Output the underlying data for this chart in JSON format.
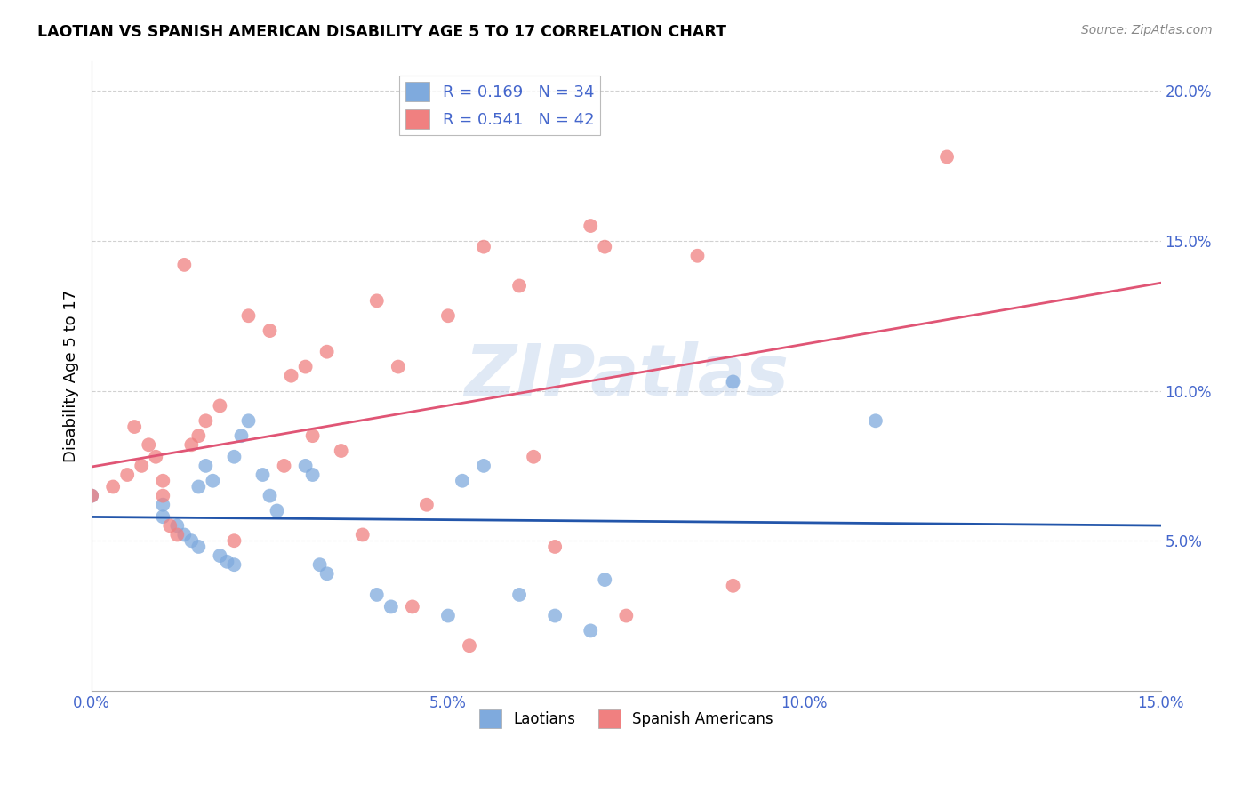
{
  "title": "LAOTIAN VS SPANISH AMERICAN DISABILITY AGE 5 TO 17 CORRELATION CHART",
  "source": "Source: ZipAtlas.com",
  "ylabel": "Disability Age 5 to 17",
  "xlim": [
    0.0,
    0.15
  ],
  "ylim": [
    0.0,
    0.21
  ],
  "xticks": [
    0.0,
    0.05,
    0.1,
    0.15
  ],
  "yticks": [
    0.05,
    0.1,
    0.15,
    0.2
  ],
  "xtick_labels": [
    "0.0%",
    "5.0%",
    "10.0%",
    "15.0%"
  ],
  "ytick_labels": [
    "5.0%",
    "10.0%",
    "15.0%",
    "20.0%"
  ],
  "laotian_color": "#7faadd",
  "spanish_color": "#f08080",
  "laotian_line_color": "#2255aa",
  "spanish_line_color": "#e05575",
  "laotian_R": 0.169,
  "laotian_N": 34,
  "spanish_R": 0.541,
  "spanish_N": 42,
  "watermark": "ZIPatlas",
  "laotian_x": [
    0.0,
    0.01,
    0.01,
    0.012,
    0.013,
    0.014,
    0.015,
    0.015,
    0.016,
    0.017,
    0.018,
    0.019,
    0.02,
    0.02,
    0.021,
    0.022,
    0.024,
    0.025,
    0.026,
    0.03,
    0.031,
    0.032,
    0.033,
    0.04,
    0.042,
    0.05,
    0.052,
    0.055,
    0.06,
    0.065,
    0.07,
    0.072,
    0.09,
    0.11
  ],
  "laotian_y": [
    0.065,
    0.062,
    0.058,
    0.055,
    0.052,
    0.05,
    0.048,
    0.068,
    0.075,
    0.07,
    0.045,
    0.043,
    0.042,
    0.078,
    0.085,
    0.09,
    0.072,
    0.065,
    0.06,
    0.075,
    0.072,
    0.042,
    0.039,
    0.032,
    0.028,
    0.025,
    0.07,
    0.075,
    0.032,
    0.025,
    0.02,
    0.037,
    0.103,
    0.09
  ],
  "spanish_x": [
    0.0,
    0.003,
    0.005,
    0.006,
    0.007,
    0.008,
    0.009,
    0.01,
    0.01,
    0.011,
    0.012,
    0.013,
    0.014,
    0.015,
    0.016,
    0.018,
    0.02,
    0.022,
    0.025,
    0.027,
    0.028,
    0.03,
    0.031,
    0.033,
    0.035,
    0.038,
    0.04,
    0.043,
    0.045,
    0.047,
    0.05,
    0.053,
    0.055,
    0.06,
    0.062,
    0.065,
    0.07,
    0.072,
    0.075,
    0.085,
    0.09,
    0.12
  ],
  "spanish_y": [
    0.065,
    0.068,
    0.072,
    0.088,
    0.075,
    0.082,
    0.078,
    0.07,
    0.065,
    0.055,
    0.052,
    0.142,
    0.082,
    0.085,
    0.09,
    0.095,
    0.05,
    0.125,
    0.12,
    0.075,
    0.105,
    0.108,
    0.085,
    0.113,
    0.08,
    0.052,
    0.13,
    0.108,
    0.028,
    0.062,
    0.125,
    0.015,
    0.148,
    0.135,
    0.078,
    0.048,
    0.155,
    0.148,
    0.025,
    0.145,
    0.035,
    0.178
  ]
}
